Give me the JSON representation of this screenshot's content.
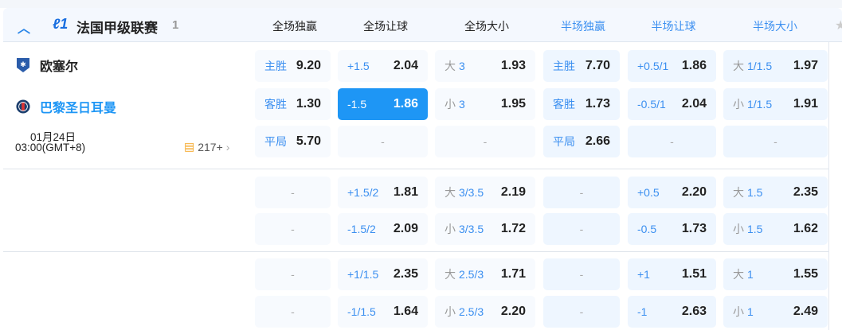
{
  "league": {
    "name": "法国甲级联赛",
    "count": "1"
  },
  "columns": [
    "全场独赢",
    "全场让球",
    "全场大小",
    "半场独赢",
    "半场让球",
    "半场大小"
  ],
  "match": {
    "home": "欧塞尔",
    "away": "巴黎圣日耳曼",
    "date": "01月24日",
    "time": "03:00(GMT+8)",
    "more": "217+"
  },
  "colors": {
    "accent": "#1e96f5",
    "label": "#3b8ff0"
  },
  "groups": [
    {
      "rows": [
        [
          {
            "label": "主胜",
            "value": "9.20"
          },
          {
            "label": "+1.5",
            "value": "2.04"
          },
          {
            "prefix": "大",
            "label": "3",
            "value": "1.93"
          },
          {
            "label": "主胜",
            "value": "7.70"
          },
          {
            "label": "+0.5/1",
            "value": "1.86"
          },
          {
            "prefix": "大",
            "label": "1/1.5",
            "value": "1.97"
          }
        ],
        [
          {
            "label": "客胜",
            "value": "1.30"
          },
          {
            "label": "-1.5",
            "value": "1.86",
            "selected": true
          },
          {
            "prefix": "小",
            "label": "3",
            "value": "1.95"
          },
          {
            "label": "客胜",
            "value": "1.73"
          },
          {
            "label": "-0.5/1",
            "value": "2.04"
          },
          {
            "prefix": "小",
            "label": "1/1.5",
            "value": "1.91"
          }
        ],
        [
          {
            "label": "平局",
            "value": "5.70"
          },
          {
            "empty": "-"
          },
          {
            "empty": "-"
          },
          {
            "label": "平局",
            "value": "2.66"
          },
          {
            "empty": "-"
          },
          {
            "empty": "-"
          }
        ]
      ]
    },
    {
      "rows": [
        [
          {
            "empty": "-"
          },
          {
            "label": "+1.5/2",
            "value": "1.81"
          },
          {
            "prefix": "大",
            "label": "3/3.5",
            "value": "2.19"
          },
          {
            "empty": "-"
          },
          {
            "label": "+0.5",
            "value": "2.20"
          },
          {
            "prefix": "大",
            "label": "1.5",
            "value": "2.35"
          }
        ],
        [
          {
            "empty": "-"
          },
          {
            "label": "-1.5/2",
            "value": "2.09"
          },
          {
            "prefix": "小",
            "label": "3/3.5",
            "value": "1.72"
          },
          {
            "empty": "-"
          },
          {
            "label": "-0.5",
            "value": "1.73"
          },
          {
            "prefix": "小",
            "label": "1.5",
            "value": "1.62"
          }
        ]
      ]
    },
    {
      "rows": [
        [
          {
            "empty": "-"
          },
          {
            "label": "+1/1.5",
            "value": "2.35"
          },
          {
            "prefix": "大",
            "label": "2.5/3",
            "value": "1.71"
          },
          {
            "empty": "-"
          },
          {
            "label": "+1",
            "value": "1.51"
          },
          {
            "prefix": "大",
            "label": "1",
            "value": "1.55"
          }
        ],
        [
          {
            "empty": "-"
          },
          {
            "label": "-1/1.5",
            "value": "1.64"
          },
          {
            "prefix": "小",
            "label": "2.5/3",
            "value": "2.20"
          },
          {
            "empty": "-"
          },
          {
            "label": "-1",
            "value": "2.63"
          },
          {
            "prefix": "小",
            "label": "1",
            "value": "2.49"
          }
        ]
      ]
    }
  ]
}
